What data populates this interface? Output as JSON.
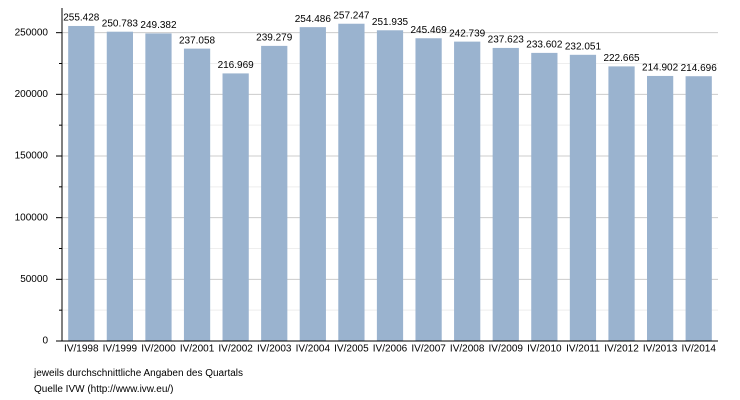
{
  "chart_data": {
    "type": "bar",
    "categories": [
      "IV/1998",
      "IV/1999",
      "IV/2000",
      "IV/2001",
      "IV/2002",
      "IV/2003",
      "IV/2004",
      "IV/2005",
      "IV/2006",
      "IV/2007",
      "IV/2008",
      "IV/2009",
      "IV/2010",
      "IV/2011",
      "IV/2012",
      "IV/2013",
      "IV/2014"
    ],
    "values": [
      255428,
      250783,
      249382,
      237058,
      216969,
      239279,
      254486,
      257247,
      251935,
      245469,
      242739,
      237623,
      233602,
      232051,
      222665,
      214902,
      214696
    ],
    "value_labels": [
      "255.428",
      "250.783",
      "249.382",
      "237.058",
      "216.969",
      "239.279",
      "254.486",
      "257.247",
      "251.935",
      "245.469",
      "242.739",
      "237.623",
      "233.602",
      "232.051",
      "222.665",
      "214.902",
      "214.696"
    ],
    "color": "#9ab3cf",
    "ylim": [
      0,
      270000
    ],
    "yticks": [
      0,
      50000,
      100000,
      150000,
      200000,
      250000
    ],
    "minor_yticks": [
      25000,
      75000,
      125000,
      175000,
      225000
    ],
    "grid": true,
    "notes": [
      "jeweils durchschnittliche Angaben des Quartals",
      "Quelle IVW (http://www.ivw.eu/)"
    ]
  }
}
